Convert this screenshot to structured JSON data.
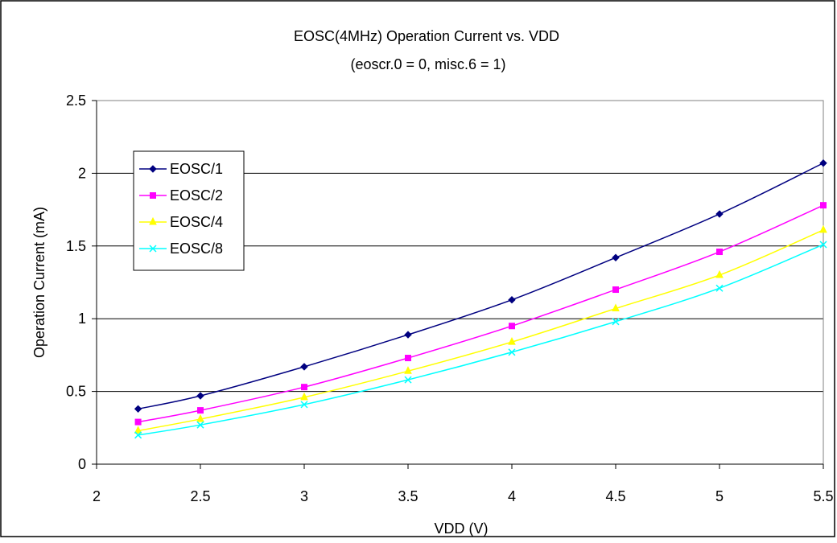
{
  "chart_data": {
    "type": "line",
    "title": "EOSC(4MHz) Operation Current  vs. VDD",
    "subtitle": "(eoscr.0 = 0, misc.6 = 1)",
    "xlabel": "VDD (V)",
    "ylabel": "Operation Current (mA)",
    "x": [
      2.2,
      2.5,
      3,
      3.5,
      4,
      4.5,
      5,
      5.5
    ],
    "xlim": [
      2,
      5.5
    ],
    "ylim": [
      0,
      2.5
    ],
    "xticks": [
      "2",
      "2.5",
      "3",
      "3.5",
      "4",
      "4.5",
      "5",
      "5.5"
    ],
    "yticks": [
      "0",
      "0.5",
      "1",
      "1.5",
      "2",
      "2.5"
    ],
    "grid": "horizontal",
    "legend_position": "left",
    "series": [
      {
        "name": "EOSC/1",
        "color": "#000080",
        "marker": "diamond",
        "values": [
          0.38,
          0.47,
          0.67,
          0.89,
          1.13,
          1.42,
          1.72,
          2.07
        ]
      },
      {
        "name": "EOSC/2",
        "color": "#ff00ff",
        "marker": "square",
        "values": [
          0.29,
          0.37,
          0.53,
          0.73,
          0.95,
          1.2,
          1.46,
          1.78
        ]
      },
      {
        "name": "EOSC/4",
        "color": "#ffff00",
        "marker": "triangle",
        "values": [
          0.23,
          0.31,
          0.46,
          0.64,
          0.84,
          1.07,
          1.3,
          1.61
        ]
      },
      {
        "name": "EOSC/8",
        "color": "#00ffff",
        "marker": "x",
        "values": [
          0.2,
          0.27,
          0.41,
          0.58,
          0.77,
          0.98,
          1.21,
          1.51
        ]
      }
    ]
  }
}
